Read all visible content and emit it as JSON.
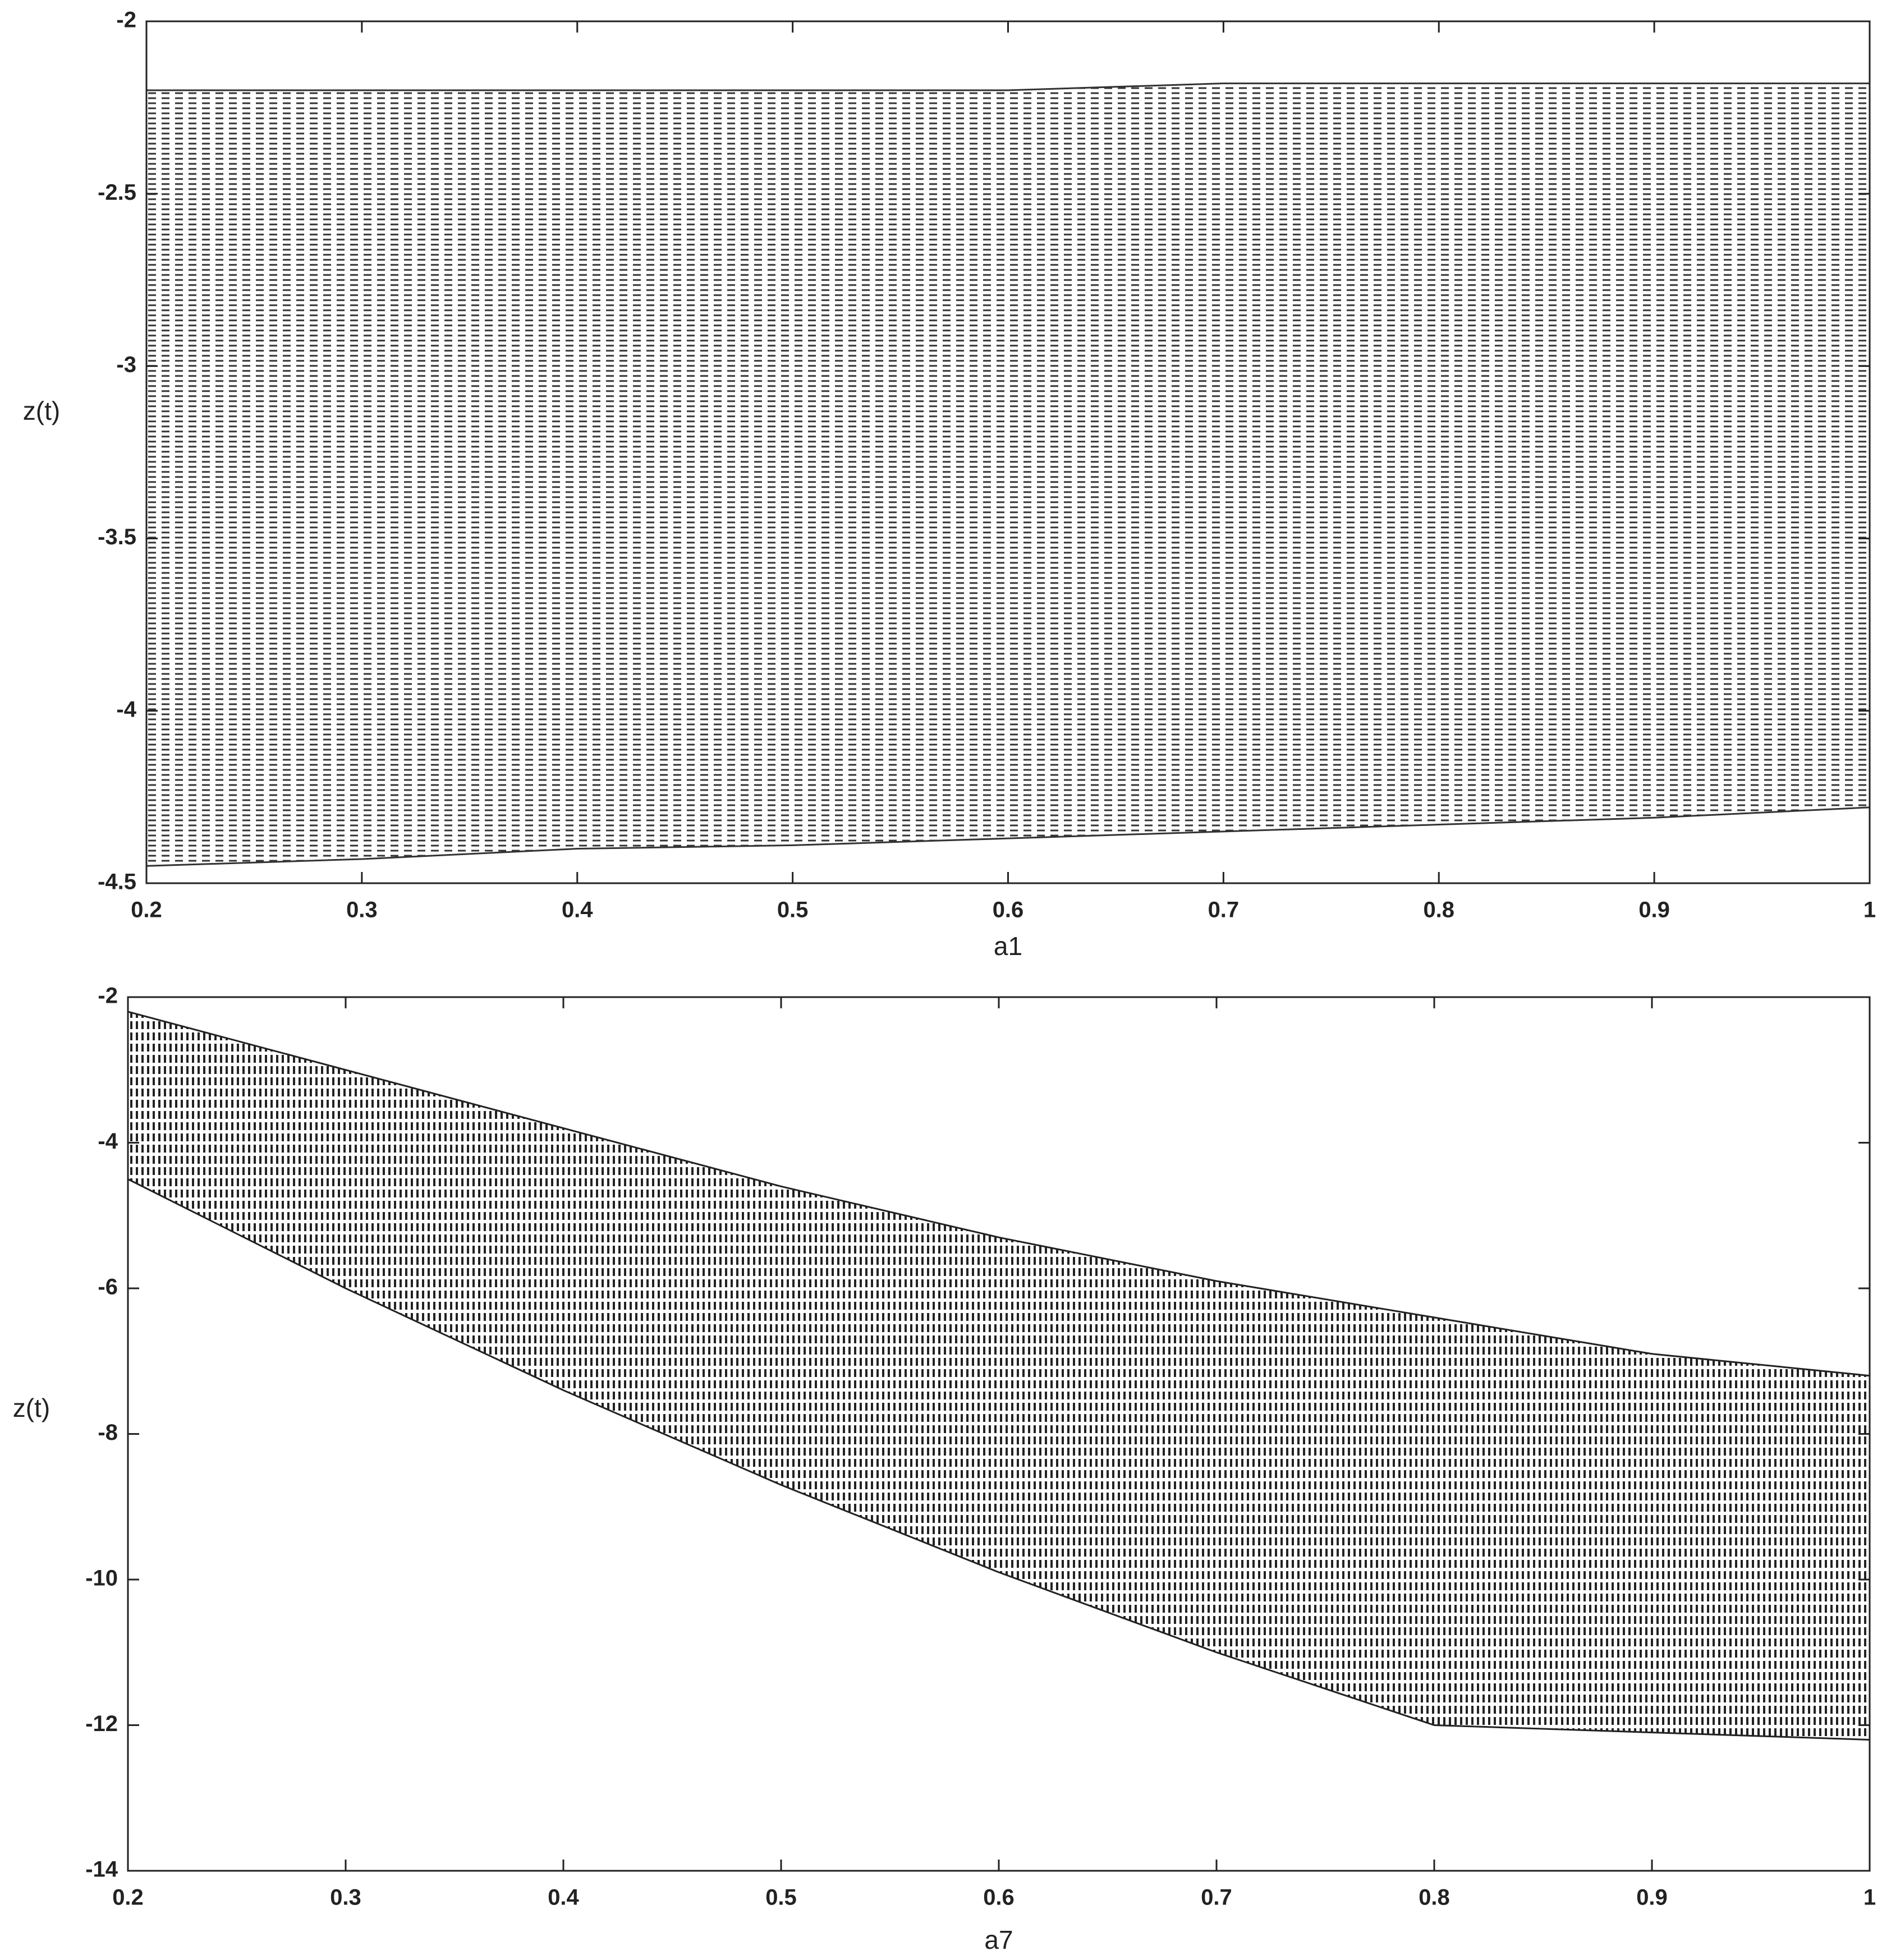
{
  "chart_data": [
    {
      "type": "band",
      "xlabel": "a1",
      "ylabel": "z(t)",
      "x": [
        0.2,
        0.3,
        0.4,
        0.5,
        0.6,
        0.7,
        0.8,
        0.9,
        1
      ],
      "upper": [
        -2.2,
        -2.2,
        -2.2,
        -2.2,
        -2.2,
        -2.18,
        -2.18,
        -2.18,
        -2.18
      ],
      "lower": [
        -4.45,
        -4.43,
        -4.4,
        -4.39,
        -4.37,
        -4.35,
        -4.33,
        -4.31,
        -4.28
      ],
      "color": "#333333",
      "hatch": "horizontal",
      "xlim": [
        0.2,
        1
      ],
      "ylim": [
        -4.5,
        -2
      ],
      "xticks": [
        0.2,
        0.3,
        0.4,
        0.5,
        0.6,
        0.7,
        0.8,
        0.9,
        1
      ],
      "yticks": [
        -4.5,
        -4,
        -3.5,
        -3,
        -2.5,
        -2
      ]
    },
    {
      "type": "band",
      "xlabel": "a7",
      "ylabel": "z(t)",
      "x": [
        0.2,
        0.3,
        0.4,
        0.5,
        0.6,
        0.7,
        0.8,
        0.9,
        1
      ],
      "upper": [
        -2.2,
        -3.0,
        -3.8,
        -4.6,
        -5.3,
        -5.9,
        -6.4,
        -6.9,
        -7.2
      ],
      "lower": [
        -4.5,
        -6.0,
        -7.4,
        -8.7,
        -9.9,
        -11.0,
        -12.0,
        -12.1,
        -12.2
      ],
      "color": "#222222",
      "hatch": "vertical",
      "xlim": [
        0.2,
        1
      ],
      "ylim": [
        -14,
        -2
      ],
      "xticks": [
        0.2,
        0.3,
        0.4,
        0.5,
        0.6,
        0.7,
        0.8,
        0.9,
        1
      ],
      "yticks": [
        -14,
        -12,
        -10,
        -8,
        -6,
        -4,
        -2
      ]
    }
  ]
}
